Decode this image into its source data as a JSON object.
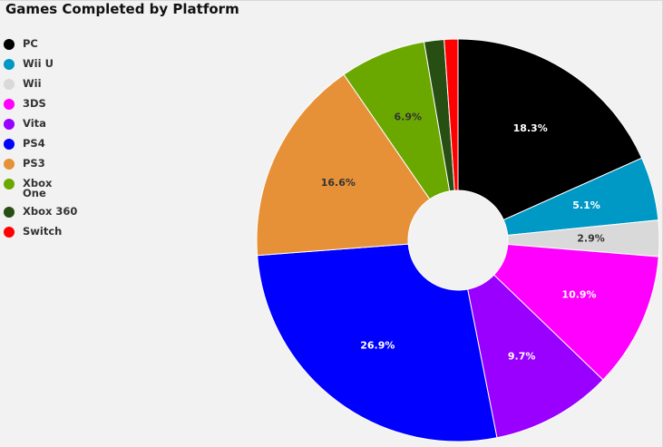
{
  "chart_data": {
    "type": "pie",
    "title": "Games Completed by Platform",
    "categories": [
      "PC",
      "Wii U",
      "Wii",
      "3DS",
      "Vita",
      "PS4",
      "PS3",
      "Xbox One",
      "Xbox 360",
      "Switch"
    ],
    "values": [
      18.3,
      5.1,
      2.9,
      10.9,
      9.7,
      26.9,
      16.6,
      6.9,
      1.6,
      1.1
    ],
    "labels": [
      "18.3%",
      "5.1%",
      "2.9%",
      "10.9%",
      "9.7%",
      "26.9%",
      "16.6%",
      "6.9%",
      "",
      ""
    ],
    "colors": [
      "#000000",
      "#0099c6",
      "#d9d9d9",
      "#ff00ff",
      "#9900ff",
      "#0000ff",
      "#e69138",
      "#6aa800",
      "#274e13",
      "#ff0000"
    ],
    "label_colors": [
      "#ffffff",
      "#ffffff",
      "#333333",
      "#ffffff",
      "#ffffff",
      "#ffffff",
      "#333333",
      "#333333",
      "#ffffff",
      "#ffffff"
    ],
    "legend_position": "left",
    "donut": true
  }
}
